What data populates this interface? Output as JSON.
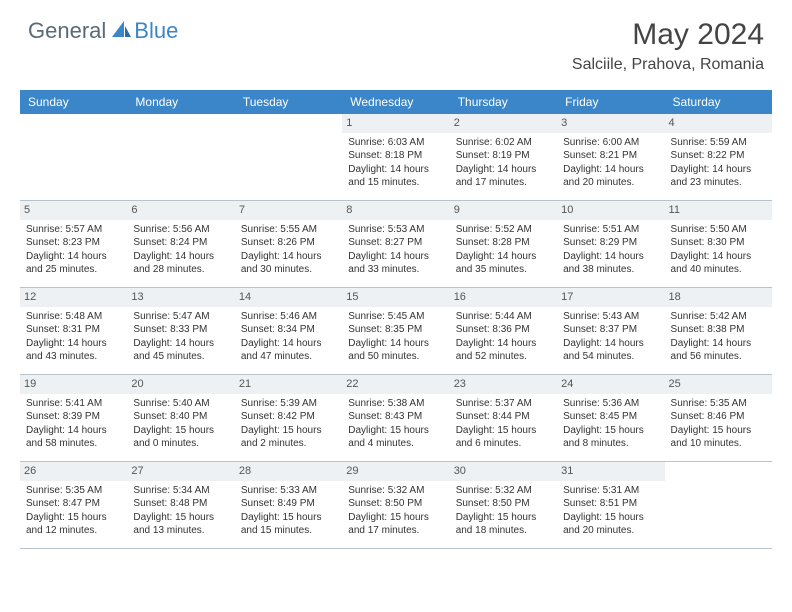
{
  "brand": {
    "part1": "General",
    "part2": "Blue"
  },
  "title": "May 2024",
  "location": "Salciile, Prahova, Romania",
  "colors": {
    "header_bg": "#3a86c8",
    "header_text": "#ffffff",
    "daynum_bg": "#eef1f3",
    "border": "#b8c4cc",
    "brand_gray": "#5a6a78",
    "brand_blue": "#3a86c8"
  },
  "day_names": [
    "Sunday",
    "Monday",
    "Tuesday",
    "Wednesday",
    "Thursday",
    "Friday",
    "Saturday"
  ],
  "weeks": [
    [
      {
        "blank": true
      },
      {
        "blank": true
      },
      {
        "blank": true
      },
      {
        "num": "1",
        "sunrise": "6:03 AM",
        "sunset": "8:18 PM",
        "daylight": "14 hours and 15 minutes."
      },
      {
        "num": "2",
        "sunrise": "6:02 AM",
        "sunset": "8:19 PM",
        "daylight": "14 hours and 17 minutes."
      },
      {
        "num": "3",
        "sunrise": "6:00 AM",
        "sunset": "8:21 PM",
        "daylight": "14 hours and 20 minutes."
      },
      {
        "num": "4",
        "sunrise": "5:59 AM",
        "sunset": "8:22 PM",
        "daylight": "14 hours and 23 minutes."
      }
    ],
    [
      {
        "num": "5",
        "sunrise": "5:57 AM",
        "sunset": "8:23 PM",
        "daylight": "14 hours and 25 minutes."
      },
      {
        "num": "6",
        "sunrise": "5:56 AM",
        "sunset": "8:24 PM",
        "daylight": "14 hours and 28 minutes."
      },
      {
        "num": "7",
        "sunrise": "5:55 AM",
        "sunset": "8:26 PM",
        "daylight": "14 hours and 30 minutes."
      },
      {
        "num": "8",
        "sunrise": "5:53 AM",
        "sunset": "8:27 PM",
        "daylight": "14 hours and 33 minutes."
      },
      {
        "num": "9",
        "sunrise": "5:52 AM",
        "sunset": "8:28 PM",
        "daylight": "14 hours and 35 minutes."
      },
      {
        "num": "10",
        "sunrise": "5:51 AM",
        "sunset": "8:29 PM",
        "daylight": "14 hours and 38 minutes."
      },
      {
        "num": "11",
        "sunrise": "5:50 AM",
        "sunset": "8:30 PM",
        "daylight": "14 hours and 40 minutes."
      }
    ],
    [
      {
        "num": "12",
        "sunrise": "5:48 AM",
        "sunset": "8:31 PM",
        "daylight": "14 hours and 43 minutes."
      },
      {
        "num": "13",
        "sunrise": "5:47 AM",
        "sunset": "8:33 PM",
        "daylight": "14 hours and 45 minutes."
      },
      {
        "num": "14",
        "sunrise": "5:46 AM",
        "sunset": "8:34 PM",
        "daylight": "14 hours and 47 minutes."
      },
      {
        "num": "15",
        "sunrise": "5:45 AM",
        "sunset": "8:35 PM",
        "daylight": "14 hours and 50 minutes."
      },
      {
        "num": "16",
        "sunrise": "5:44 AM",
        "sunset": "8:36 PM",
        "daylight": "14 hours and 52 minutes."
      },
      {
        "num": "17",
        "sunrise": "5:43 AM",
        "sunset": "8:37 PM",
        "daylight": "14 hours and 54 minutes."
      },
      {
        "num": "18",
        "sunrise": "5:42 AM",
        "sunset": "8:38 PM",
        "daylight": "14 hours and 56 minutes."
      }
    ],
    [
      {
        "num": "19",
        "sunrise": "5:41 AM",
        "sunset": "8:39 PM",
        "daylight": "14 hours and 58 minutes."
      },
      {
        "num": "20",
        "sunrise": "5:40 AM",
        "sunset": "8:40 PM",
        "daylight": "15 hours and 0 minutes."
      },
      {
        "num": "21",
        "sunrise": "5:39 AM",
        "sunset": "8:42 PM",
        "daylight": "15 hours and 2 minutes."
      },
      {
        "num": "22",
        "sunrise": "5:38 AM",
        "sunset": "8:43 PM",
        "daylight": "15 hours and 4 minutes."
      },
      {
        "num": "23",
        "sunrise": "5:37 AM",
        "sunset": "8:44 PM",
        "daylight": "15 hours and 6 minutes."
      },
      {
        "num": "24",
        "sunrise": "5:36 AM",
        "sunset": "8:45 PM",
        "daylight": "15 hours and 8 minutes."
      },
      {
        "num": "25",
        "sunrise": "5:35 AM",
        "sunset": "8:46 PM",
        "daylight": "15 hours and 10 minutes."
      }
    ],
    [
      {
        "num": "26",
        "sunrise": "5:35 AM",
        "sunset": "8:47 PM",
        "daylight": "15 hours and 12 minutes."
      },
      {
        "num": "27",
        "sunrise": "5:34 AM",
        "sunset": "8:48 PM",
        "daylight": "15 hours and 13 minutes."
      },
      {
        "num": "28",
        "sunrise": "5:33 AM",
        "sunset": "8:49 PM",
        "daylight": "15 hours and 15 minutes."
      },
      {
        "num": "29",
        "sunrise": "5:32 AM",
        "sunset": "8:50 PM",
        "daylight": "15 hours and 17 minutes."
      },
      {
        "num": "30",
        "sunrise": "5:32 AM",
        "sunset": "8:50 PM",
        "daylight": "15 hours and 18 minutes."
      },
      {
        "num": "31",
        "sunrise": "5:31 AM",
        "sunset": "8:51 PM",
        "daylight": "15 hours and 20 minutes."
      },
      {
        "blank": true
      }
    ]
  ],
  "labels": {
    "sunrise": "Sunrise:",
    "sunset": "Sunset:",
    "daylight": "Daylight:"
  }
}
